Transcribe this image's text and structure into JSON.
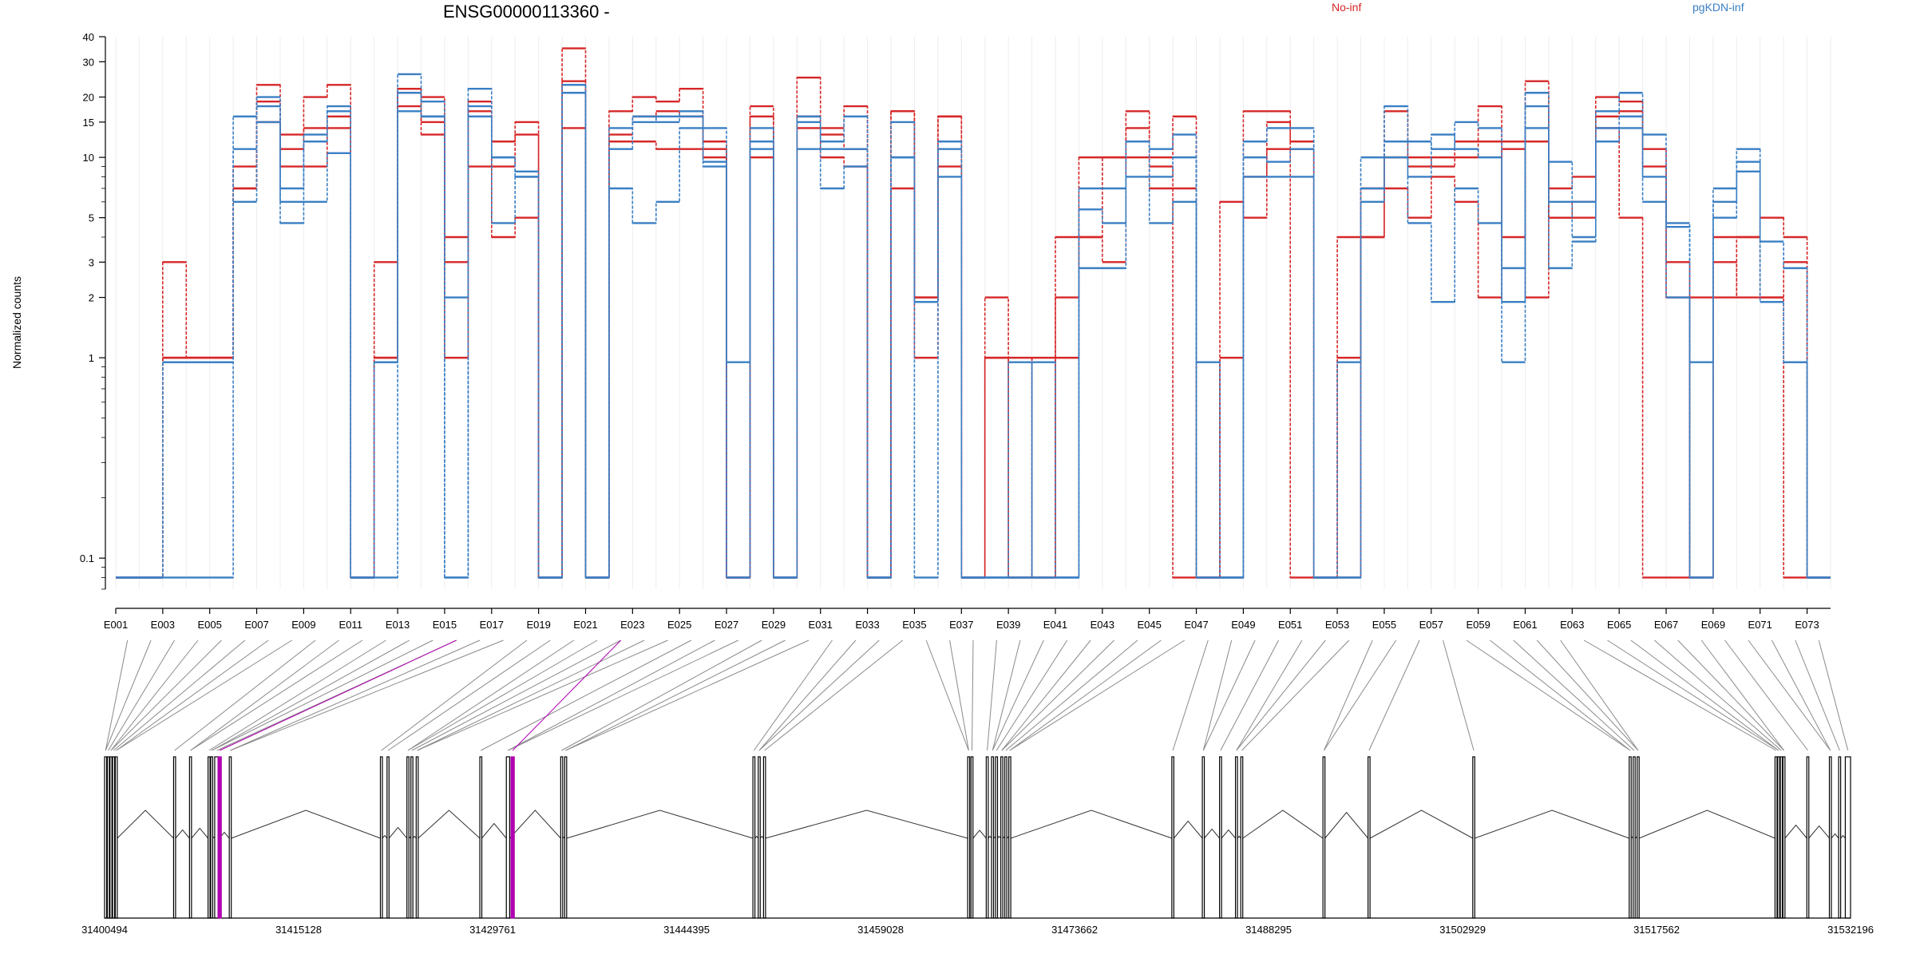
{
  "chart_data": {
    "type": "line",
    "title": "ENSG00000113360 -",
    "ylabel": "Normalized counts",
    "yscale": "log",
    "ylim": [
      0.07,
      40
    ],
    "yticks": [
      0.1,
      1,
      2,
      3,
      5,
      10,
      15,
      20,
      30,
      40
    ],
    "yticklabels": [
      "0.1",
      "1",
      "2",
      "3",
      "5",
      "10",
      "15",
      "20",
      "30",
      "40"
    ],
    "grid": true,
    "legend_placement": "top",
    "colors": {
      "No-inf": "#d62728",
      "pgKDN-inf": "#3a7fc4"
    },
    "categories": [
      "E001",
      "E002",
      "E003",
      "E004",
      "E005",
      "E006",
      "E007",
      "E008",
      "E009",
      "E010",
      "E011",
      "E012",
      "E013",
      "E014",
      "E015",
      "E016",
      "E017",
      "E018",
      "E019",
      "E020",
      "E021",
      "E022",
      "E023",
      "E024",
      "E025",
      "E026",
      "E027",
      "E028",
      "E029",
      "E030",
      "E031",
      "E032",
      "E033",
      "E034",
      "E035",
      "E036",
      "E037",
      "E038",
      "E039",
      "E040",
      "E041",
      "E042",
      "E043",
      "E044",
      "E045",
      "E046",
      "E047",
      "E048",
      "E049",
      "E050",
      "E051",
      "E052",
      "E053",
      "E054",
      "E055",
      "E056",
      "E057",
      "E058",
      "E059",
      "E060",
      "E061",
      "E062",
      "E063",
      "E064",
      "E065",
      "E066",
      "E067",
      "E068",
      "E069",
      "E070",
      "E071",
      "E072",
      "E073"
    ],
    "tick_labels": [
      "E001",
      "E003",
      "E005",
      "E007",
      "E009",
      "E011",
      "E013",
      "E015",
      "E017",
      "E019",
      "E021",
      "E023",
      "E025",
      "E027",
      "E029",
      "E031",
      "E033",
      "E035",
      "E037",
      "E039",
      "E041",
      "E043",
      "E045",
      "E047",
      "E049",
      "E051",
      "E053",
      "E055",
      "E057",
      "E059",
      "E061",
      "E063",
      "E065",
      "E067",
      "E069",
      "E071",
      "E073"
    ],
    "series": [
      {
        "name": "No-inf",
        "values": [
          0.08,
          0.08,
          3.0,
          1.0,
          1.0,
          9.0,
          23.0,
          13.0,
          20.0,
          23.0,
          0.08,
          3.0,
          22.0,
          20.0,
          4.0,
          19.0,
          12.0,
          15.0,
          0.08,
          35.0,
          0.08,
          17.0,
          20.0,
          19.0,
          22.0,
          12.0,
          0.08,
          18.0,
          0.08,
          25.0,
          14.0,
          18.0,
          0.08,
          17.0,
          2.0,
          16.0,
          0.08,
          2.0,
          1.0,
          0.08,
          2.0,
          10.0,
          10.0,
          17.0,
          10.0,
          16.0,
          0.08,
          1.0,
          17.0,
          17.0,
          12.0,
          0.08,
          1.0,
          4.0,
          17.0,
          9.0,
          10.0,
          12.0,
          18.0,
          12.0,
          24.0,
          5.0,
          6.0,
          20.0,
          19.0,
          11.0,
          3.0,
          0.08,
          2.0,
          4.0,
          5.0,
          4.0,
          0.08
        ]
      },
      {
        "name": "No-inf",
        "values": [
          0.08,
          0.08,
          1.0,
          1.0,
          1.0,
          7.0,
          19.0,
          11.0,
          14.0,
          16.0,
          0.08,
          1.0,
          18.0,
          15.0,
          3.0,
          17.0,
          9.0,
          13.0,
          0.08,
          24.0,
          0.08,
          13.0,
          16.0,
          17.0,
          16.0,
          11.0,
          0.08,
          16.0,
          0.08,
          16.0,
          13.0,
          11.0,
          0.08,
          17.0,
          2.0,
          16.0,
          0.08,
          1.0,
          0.08,
          1.0,
          1.0,
          4.0,
          3.0,
          14.0,
          9.0,
          7.0,
          0.08,
          0.08,
          8.0,
          15.0,
          11.0,
          0.08,
          0.08,
          4.0,
          10.0,
          10.0,
          9.0,
          10.0,
          12.0,
          4.0,
          12.0,
          5.0,
          5.0,
          16.0,
          17.0,
          9.0,
          2.0,
          0.08,
          4.0,
          4.0,
          2.0,
          3.0,
          0.08
        ]
      },
      {
        "name": "No-inf",
        "values": [
          0.08,
          0.08,
          1.0,
          1.0,
          1.0,
          7.0,
          15.0,
          9.0,
          9.0,
          14.0,
          0.08,
          1.0,
          22.0,
          13.0,
          1.0,
          9.0,
          4.0,
          5.0,
          0.08,
          14.0,
          0.08,
          12.0,
          12.0,
          11.0,
          11.0,
          10.0,
          0.08,
          10.0,
          0.08,
          14.0,
          10.0,
          9.0,
          0.08,
          7.0,
          1.0,
          9.0,
          0.08,
          1.0,
          0.08,
          0.08,
          4.0,
          4.0,
          10.0,
          10.0,
          7.0,
          0.08,
          0.08,
          6.0,
          5.0,
          11.0,
          0.08,
          0.08,
          4.0,
          7.0,
          7.0,
          5.0,
          8.0,
          6.0,
          2.0,
          11.0,
          2.0,
          7.0,
          8.0,
          14.0,
          5.0,
          0.08,
          0.08,
          2.0,
          3.0,
          2.0,
          2.0,
          0.08,
          0.08
        ]
      },
      {
        "name": "pgKDN-inf",
        "values": [
          0.08,
          0.08,
          0.95,
          0.95,
          0.95,
          16.0,
          20.0,
          7.0,
          13.0,
          17.0,
          0.08,
          0.95,
          26.0,
          16.0,
          0.08,
          22.0,
          10.0,
          8.0,
          0.08,
          23.0,
          0.08,
          14.0,
          16.0,
          15.0,
          17.0,
          14.0,
          0.95,
          14.0,
          0.08,
          16.0,
          12.0,
          16.0,
          0.08,
          15.0,
          1.9,
          12.0,
          0.08,
          0.08,
          0.95,
          0.08,
          0.08,
          7.0,
          7.0,
          12.0,
          11.0,
          13.0,
          0.95,
          0.08,
          12.0,
          14.0,
          14.0,
          0.08,
          0.95,
          10.0,
          18.0,
          12.0,
          11.0,
          15.0,
          14.0,
          2.8,
          21.0,
          9.5,
          6.0,
          17.0,
          21.0,
          13.0,
          4.7,
          0.95,
          7.0,
          11.0,
          1.9,
          0.95,
          0.08
        ]
      },
      {
        "name": "pgKDN-inf",
        "values": [
          0.08,
          0.08,
          0.95,
          0.95,
          0.95,
          11.0,
          18.0,
          6.0,
          12.0,
          18.0,
          0.08,
          0.95,
          21.0,
          19.0,
          2.0,
          18.0,
          10.0,
          8.5,
          0.08,
          23.0,
          0.08,
          11.0,
          15.0,
          16.0,
          16.0,
          9.5,
          0.08,
          12.0,
          0.08,
          15.0,
          11.0,
          11.0,
          0.08,
          10.0,
          1.9,
          11.0,
          0.08,
          0.08,
          0.08,
          0.08,
          0.08,
          5.5,
          4.7,
          12.0,
          8.0,
          10.0,
          0.08,
          0.08,
          10.0,
          9.5,
          11.0,
          0.08,
          0.08,
          7.0,
          12.0,
          8.0,
          13.0,
          11.0,
          10.0,
          1.9,
          18.0,
          6.0,
          4.0,
          14.0,
          16.0,
          8.0,
          4.5,
          0.08,
          6.0,
          9.5,
          3.8,
          2.8,
          0.08
        ]
      },
      {
        "name": "pgKDN-inf",
        "values": [
          0.08,
          0.08,
          0.08,
          0.08,
          0.08,
          6.0,
          15.0,
          4.7,
          6.0,
          10.5,
          0.08,
          0.08,
          17.0,
          16.0,
          0.08,
          16.0,
          4.7,
          8.0,
          0.08,
          21.0,
          0.08,
          7.0,
          4.7,
          6.0,
          14.0,
          9.0,
          0.08,
          11.0,
          0.08,
          11.0,
          7.0,
          9.0,
          0.08,
          10.0,
          0.08,
          8.0,
          0.08,
          0.08,
          0.08,
          0.95,
          0.08,
          2.8,
          2.8,
          8.0,
          4.7,
          6.0,
          0.08,
          0.08,
          8.0,
          8.0,
          8.0,
          0.08,
          0.08,
          6.0,
          10.0,
          4.7,
          1.9,
          7.0,
          4.7,
          0.95,
          14.0,
          2.8,
          3.8,
          12.0,
          14.0,
          6.0,
          2.0,
          0.08,
          5.0,
          8.5,
          1.9,
          0.95,
          0.08
        ]
      }
    ]
  },
  "legend": [
    "No-inf",
    "pgKDN-inf"
  ],
  "gene_model": {
    "coordinate_labels": [
      "31400494",
      "31415128",
      "31429761",
      "31444395",
      "31459028",
      "31473662",
      "31488295",
      "31502929",
      "31517562",
      "31532196"
    ],
    "coord_start": 31400494,
    "coord_end": 31532196,
    "exons": [
      [
        31400494,
        31400650
      ],
      [
        31400700,
        31400850
      ],
      [
        31400900,
        31401050
      ],
      [
        31401100,
        31401250
      ],
      [
        31401300,
        31401450
      ],
      [
        31405700,
        31405850
      ],
      [
        31406900,
        31407050
      ],
      [
        31408300,
        31408450
      ],
      [
        31408500,
        31408650
      ],
      [
        31408800,
        31409150
      ],
      [
        31409900,
        31410050
      ],
      [
        31421300,
        31421450
      ],
      [
        31421800,
        31421950
      ],
      [
        31423300,
        31423450
      ],
      [
        31423600,
        31423750
      ],
      [
        31424000,
        31424150
      ],
      [
        31428800,
        31428950
      ],
      [
        31430800,
        31431050
      ],
      [
        31434900,
        31435050
      ],
      [
        31435200,
        31435350
      ],
      [
        31449400,
        31449550
      ],
      [
        31449800,
        31449950
      ],
      [
        31450200,
        31450350
      ],
      [
        31465600,
        31465750
      ],
      [
        31465850,
        31466000
      ],
      [
        31467000,
        31467150
      ],
      [
        31467400,
        31467550
      ],
      [
        31467700,
        31467850
      ],
      [
        31468100,
        31468250
      ],
      [
        31468400,
        31468550
      ],
      [
        31468700,
        31468850
      ],
      [
        31481000,
        31481150
      ],
      [
        31483300,
        31483450
      ],
      [
        31484600,
        31484750
      ],
      [
        31485800,
        31485950
      ],
      [
        31486200,
        31486350
      ],
      [
        31492400,
        31492550
      ],
      [
        31495800,
        31495950
      ],
      [
        31503700,
        31503850
      ],
      [
        31515500,
        31515650
      ],
      [
        31515800,
        31515950
      ],
      [
        31516100,
        31516250
      ],
      [
        31526500,
        31526650
      ],
      [
        31526700,
        31526850
      ],
      [
        31526900,
        31527050
      ],
      [
        31527100,
        31527250
      ],
      [
        31528900,
        31529050
      ],
      [
        31530600,
        31530750
      ],
      [
        31531300,
        31531450
      ],
      [
        31531800,
        31532196
      ]
    ],
    "highlighted_exons": [
      [
        31409050,
        31409300
      ],
      [
        31431150,
        31431400
      ]
    ],
    "highlight_color": "#b000b0"
  }
}
